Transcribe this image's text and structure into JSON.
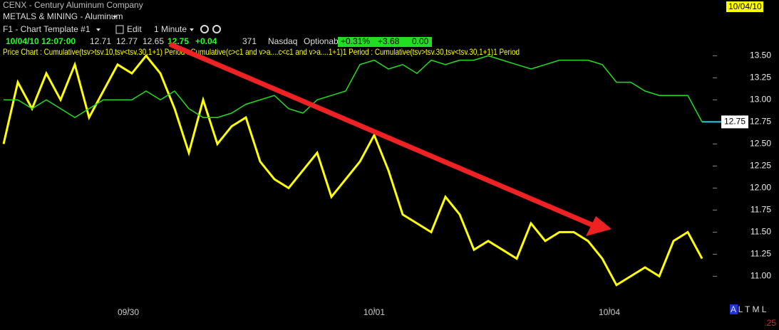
{
  "header": {
    "symbol": "CENX - Century Aluminum Company",
    "date_box": "10/04/10",
    "industry": "METALS & MINING - Aluminum",
    "template": "F1 - Chart Template #1",
    "edit": "Edit",
    "interval": "1 Minute",
    "time": "10/04/10 12:07:00",
    "open": "12.71",
    "high": "12.77",
    "low": "12.65",
    "last": "12.75",
    "change": "+0.04",
    "volume": "371",
    "exchange": "Nasdaq",
    "optionable": "Optionable",
    "pct_change": "+0.31%",
    "box2": "+3.68",
    "box3": "0.00",
    "legend": "Price Chart : Cumulative(tsv>tsv.10,tsv<tsv.30,1+1) Period : Cumulative(c>c1 and v>a....c<c1 and v>a....1+1)1 Period : Cumulative(tsv>tsv.30,tsv<tsv.30,1+1)1 Period"
  },
  "footer": {
    "modes": "A L T M L",
    "scale": ".25"
  },
  "chart_data": {
    "type": "line",
    "x": [
      0,
      1,
      2,
      3,
      4,
      5,
      6,
      7,
      8,
      9,
      10,
      11,
      12,
      13,
      14,
      15,
      16,
      17,
      18,
      19,
      20,
      21,
      22,
      23,
      24,
      25,
      26,
      27,
      28,
      29,
      30,
      31,
      32,
      33,
      34,
      35,
      36,
      37,
      38,
      39,
      40,
      41,
      42,
      43,
      44,
      45,
      46,
      47,
      48,
      49
    ],
    "xlim": [
      0,
      49
    ],
    "xticks": [
      {
        "value": 8.75,
        "label": "09/30"
      },
      {
        "value": 26,
        "label": "10/01"
      },
      {
        "value": 42.5,
        "label": "10/04"
      }
    ],
    "ylim": [
      10.6,
      13.6
    ],
    "yticks": [
      {
        "value": 11,
        "label": "11.00"
      },
      {
        "value": 11.25,
        "label": "11.25"
      },
      {
        "value": 11.5,
        "label": "11.50"
      },
      {
        "value": 11.75,
        "label": "11.75"
      },
      {
        "value": 12,
        "label": "12.00"
      },
      {
        "value": 12.25,
        "label": "12.25"
      },
      {
        "value": 12.5,
        "label": "12.50"
      },
      {
        "value": 12.75,
        "label": "12.75"
      },
      {
        "value": 13,
        "label": "13.00"
      },
      {
        "value": 13.25,
        "label": "13.25"
      },
      {
        "value": 13.5,
        "label": "13.50"
      }
    ],
    "series": [
      {
        "color": "#ffff00",
        "values": [
          12.5,
          13.2,
          12.9,
          13.3,
          13.0,
          13.4,
          12.8,
          13.1,
          13.4,
          13.3,
          13.5,
          13.3,
          12.9,
          12.4,
          13.0,
          12.5,
          12.7,
          12.8,
          12.3,
          12.1,
          12.0,
          12.2,
          12.4,
          11.9,
          12.1,
          12.3,
          12.6,
          12.2,
          11.7,
          11.6,
          11.5,
          11.9,
          11.7,
          11.3,
          11.4,
          11.3,
          11.2,
          11.6,
          11.4,
          11.5,
          11.5,
          11.4,
          11.2,
          10.9,
          11.0,
          11.1,
          11.0,
          11.4,
          11.5,
          11.2
        ]
      },
      {
        "color": "#22dd22",
        "values": [
          13.0,
          13.0,
          12.9,
          13.0,
          12.9,
          12.8,
          12.9,
          13.0,
          13.0,
          13.0,
          13.1,
          13.0,
          13.1,
          12.9,
          12.8,
          12.8,
          12.85,
          12.95,
          13.0,
          13.05,
          12.9,
          12.85,
          13.0,
          13.05,
          13.1,
          13.4,
          13.45,
          13.35,
          13.4,
          13.3,
          13.45,
          13.4,
          13.45,
          13.45,
          13.5,
          13.45,
          13.4,
          13.35,
          13.4,
          13.45,
          13.45,
          13.45,
          13.4,
          13.2,
          13.2,
          13.1,
          13.05,
          13.05,
          13.05,
          12.75
        ]
      }
    ],
    "last_label": "12.75"
  }
}
